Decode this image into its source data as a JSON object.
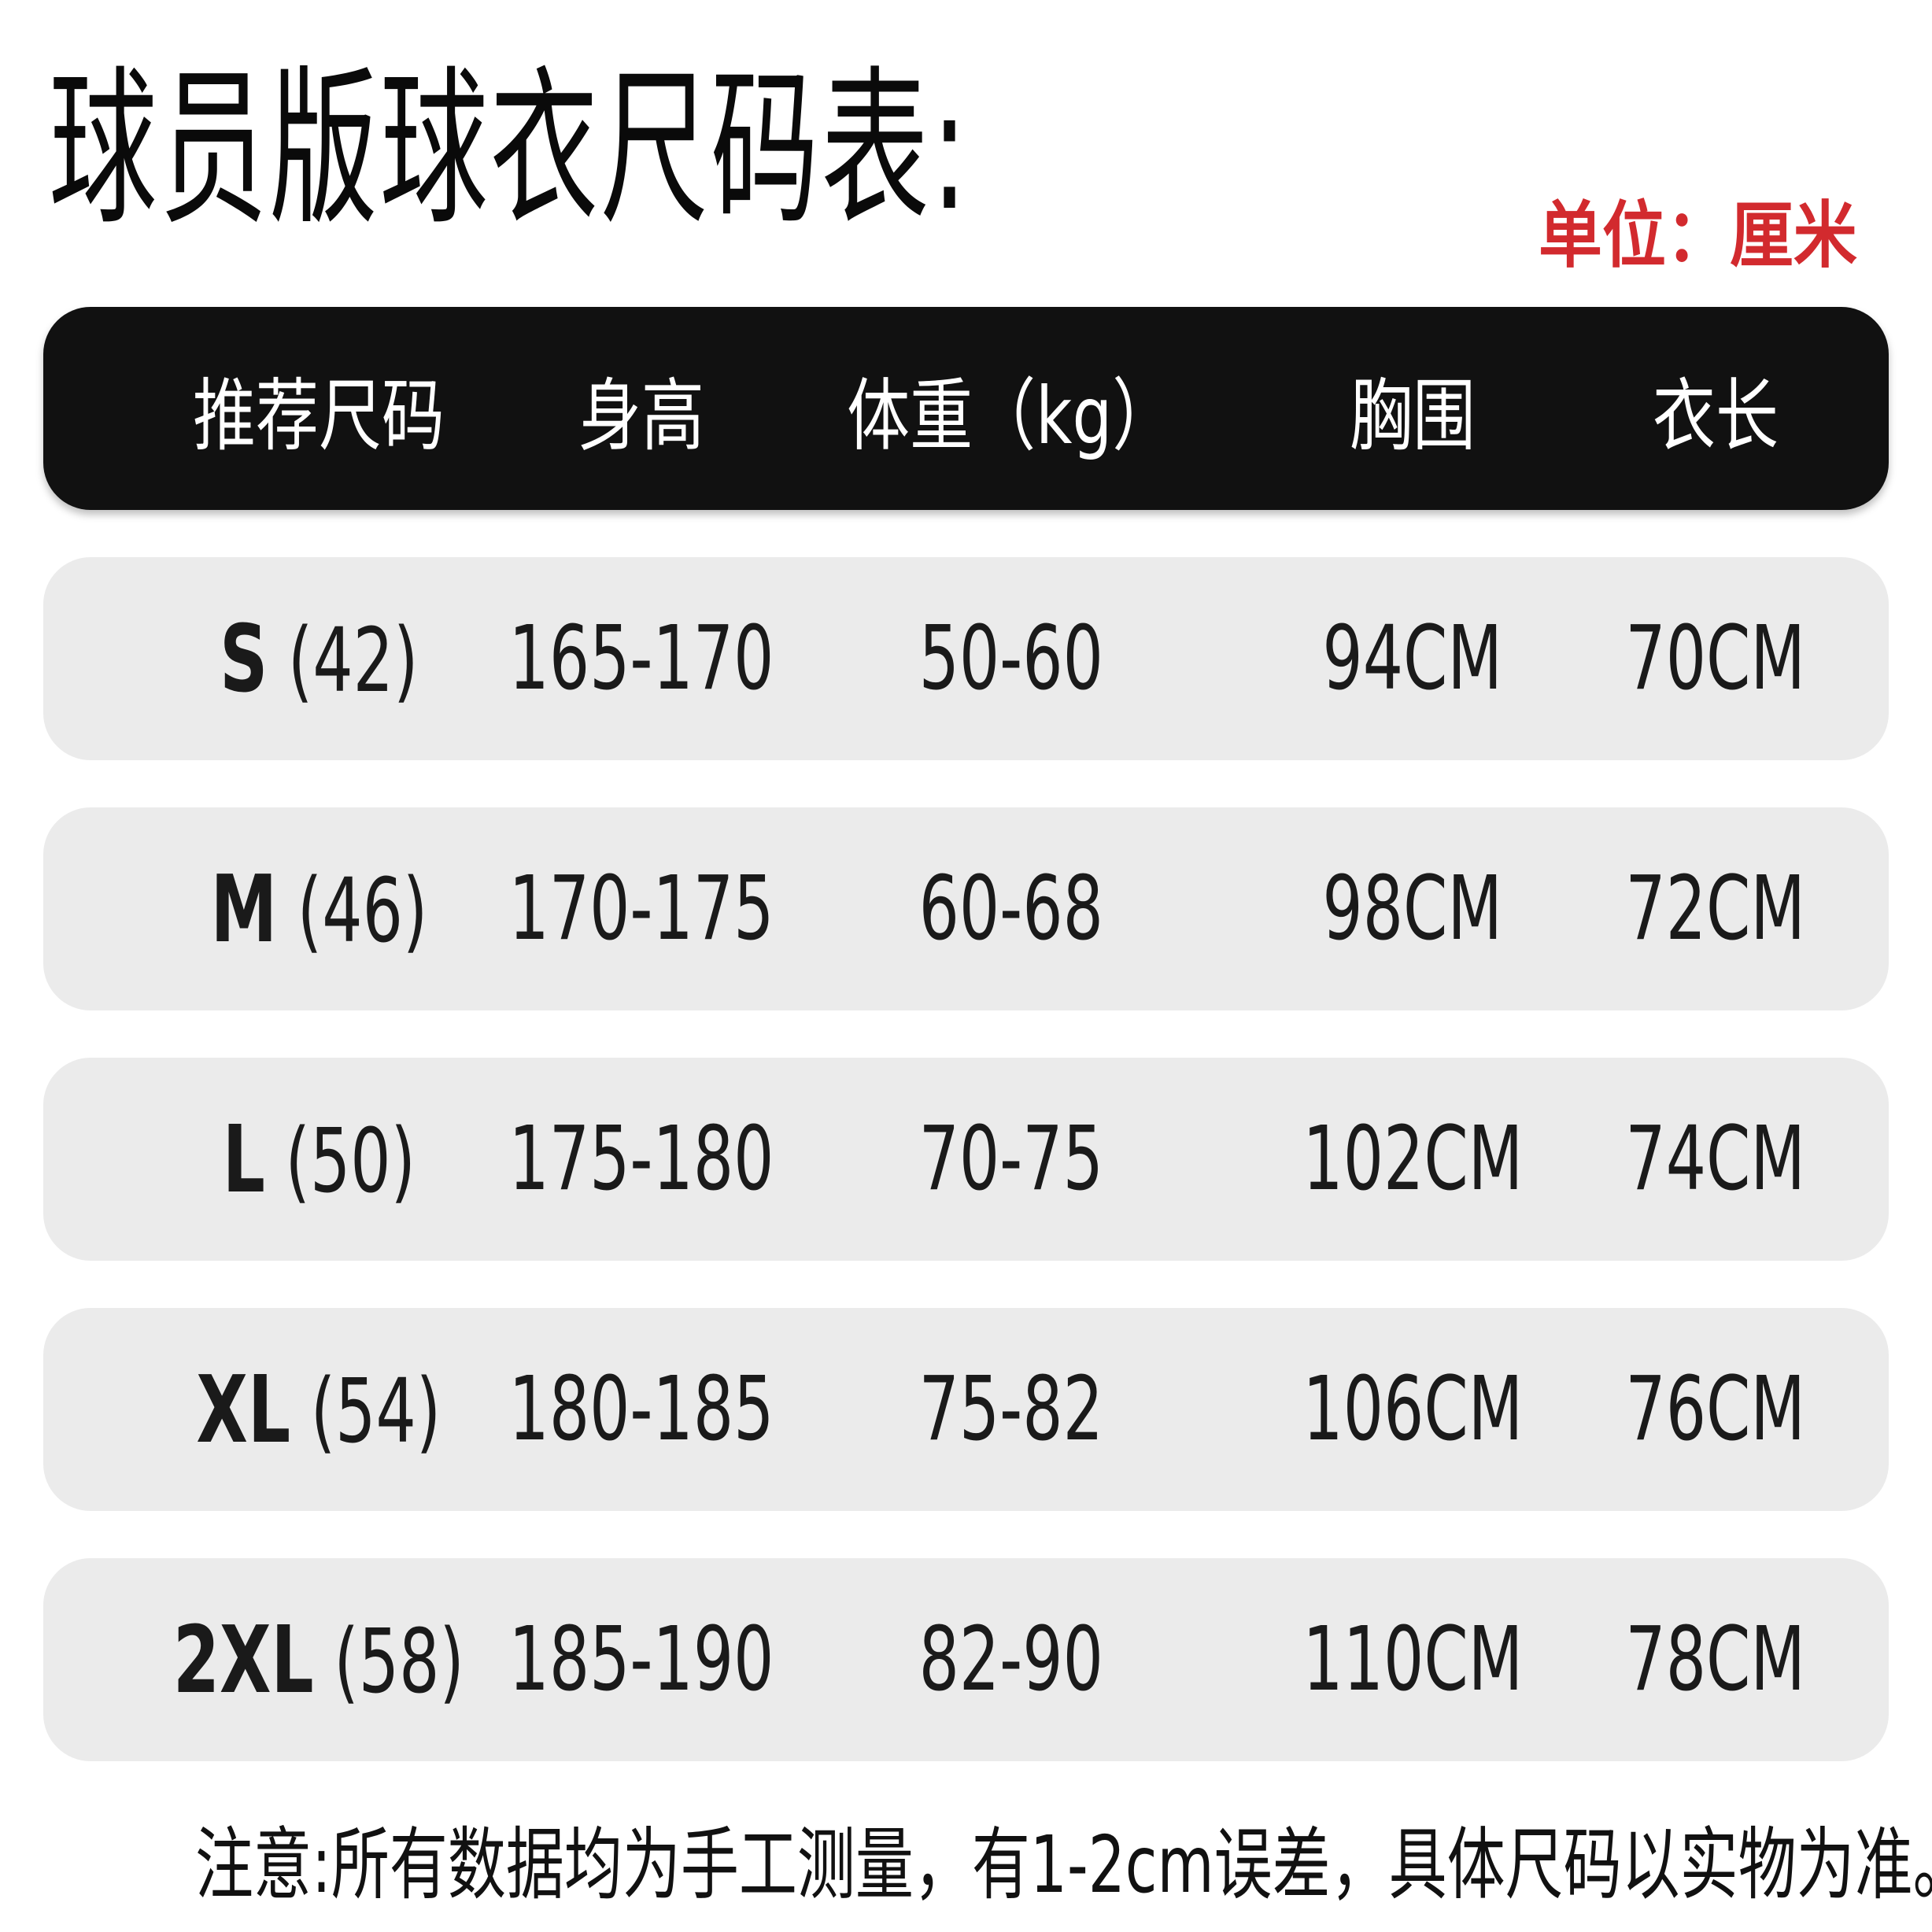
{
  "title": "球员版球衣尺码表:",
  "unit": "单位：厘米",
  "colors": {
    "header_bg": "#111111",
    "row_bg": "#ebebeb",
    "unit_text": "#d22a2e"
  },
  "headers": [
    "推荐尺码",
    "身高",
    "体重（kg）",
    "胸围",
    "衣长"
  ],
  "rows": [
    {
      "size": "S",
      "eu": "(42)",
      "height": "165-170",
      "weight": "50-60",
      "chest": "94CM",
      "length": "70CM"
    },
    {
      "size": "M",
      "eu": "(46)",
      "height": "170-175",
      "weight": "60-68",
      "chest": "98CM",
      "length": "72CM"
    },
    {
      "size": "L",
      "eu": "(50)",
      "height": "175-180",
      "weight": "70-75",
      "chest": "102CM",
      "length": "74CM"
    },
    {
      "size": "XL",
      "eu": "(54)",
      "height": "180-185",
      "weight": "75-82",
      "chest": "106CM",
      "length": "76CM"
    },
    {
      "size": "2XL",
      "eu": "(58)",
      "height": "185-190",
      "weight": "82-90",
      "chest": "110CM",
      "length": "78CM"
    }
  ],
  "footer": "注意:所有数据均为手工测量，有1-2cm误差，具体尺码以实物为准。"
}
